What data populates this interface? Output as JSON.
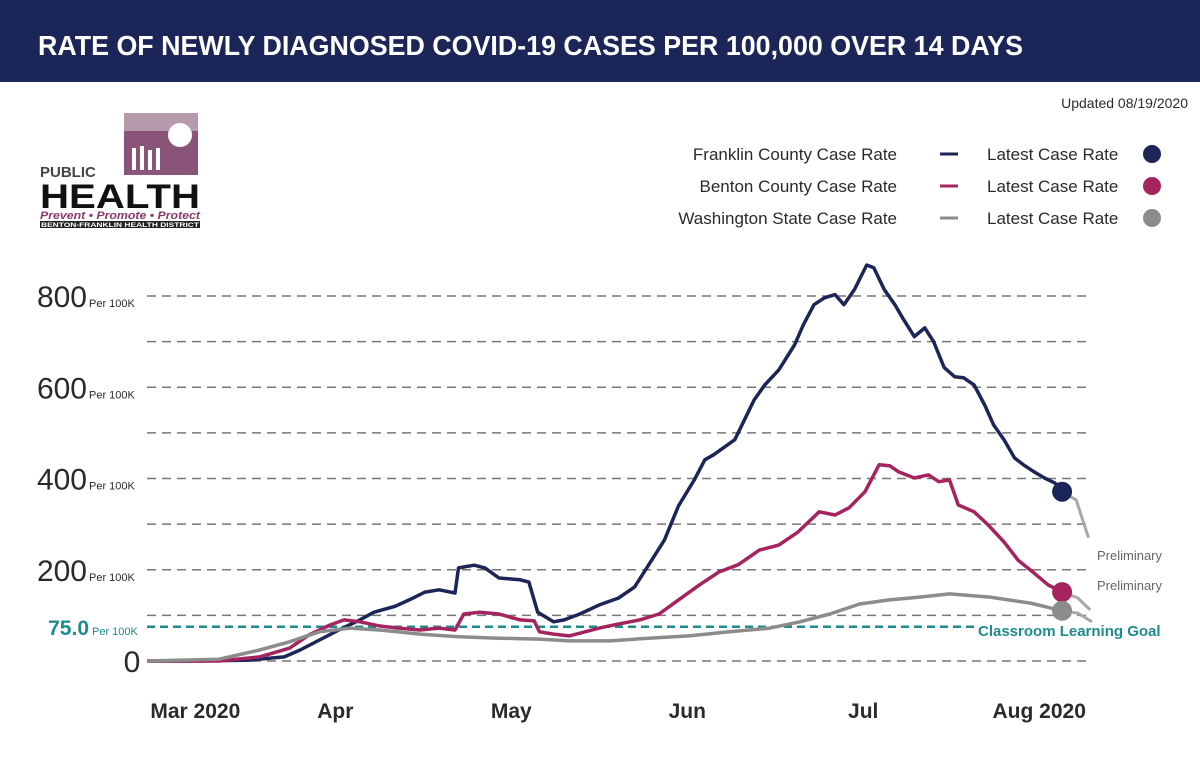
{
  "chart_data": {
    "type": "line",
    "title": "RATE OF NEWLY DIAGNOSED COVID-19 CASES PER 100,000 OVER 14 DAYS",
    "updated": "Updated 08/19/2020",
    "logo": {
      "line1": "PUBLIC",
      "line2": "HEALTH",
      "tagline": "Prevent • Promote • Protect",
      "district": "BENTON-FRANKLIN HEALTH DISTRICT"
    },
    "latest_label": "Latest Case Rate",
    "preliminary_label": "Preliminary",
    "preliminary_color": "#a8a8a8",
    "y_unit": "Per 100K",
    "xlim": [
      2.93,
      8.3
    ],
    "xticks": [
      {
        "value": 3,
        "label": "Mar 2020"
      },
      {
        "value": 4,
        "label": "Apr"
      },
      {
        "value": 5,
        "label": "May"
      },
      {
        "value": 6,
        "label": "Jun"
      },
      {
        "value": 7,
        "label": "Jul"
      },
      {
        "value": 8,
        "label": "Aug 2020"
      }
    ],
    "ylim": [
      0,
      880
    ],
    "yticks": [
      0,
      200,
      400,
      600,
      800
    ],
    "ygrid": [
      0,
      100,
      200,
      300,
      400,
      500,
      600,
      700,
      800
    ],
    "grid": true,
    "goal": {
      "value": 75,
      "value_label": "75.0",
      "name": "Classroom Learning Goal",
      "color": "#1e8c8c"
    },
    "series": [
      {
        "name": "Franklin County Case Rate",
        "color": "#1c2557",
        "x": [
          2.93,
          3.23,
          3.51,
          3.71,
          3.8,
          3.91,
          4.02,
          4.14,
          4.22,
          4.34,
          4.42,
          4.51,
          4.59,
          4.68,
          4.7,
          4.79,
          4.85,
          4.93,
          5.05,
          5.1,
          5.15,
          5.24,
          5.3,
          5.39,
          5.5,
          5.61,
          5.7,
          5.78,
          5.87,
          5.95,
          6.04,
          6.1,
          6.15,
          6.27,
          6.38,
          6.44,
          6.52,
          6.61,
          6.66,
          6.72,
          6.78,
          6.84,
          6.89,
          6.95,
          7.02,
          7.06,
          7.12,
          7.18,
          7.23,
          7.29,
          7.35,
          7.4,
          7.46,
          7.52,
          7.57,
          7.63,
          7.69,
          7.74,
          7.8,
          7.86,
          7.91,
          7.97,
          8.03,
          8.09,
          8.13
        ],
        "values": [
          0,
          0,
          2,
          9,
          24,
          46,
          68,
          90,
          107,
          120,
          134,
          151,
          156,
          149,
          204,
          210,
          204,
          182,
          178,
          173,
          107,
          86,
          90,
          103,
          123,
          138,
          162,
          210,
          265,
          340,
          397,
          441,
          452,
          485,
          572,
          605,
          638,
          693,
          737,
          781,
          796,
          803,
          781,
          814,
          868,
          862,
          814,
          781,
          748,
          711,
          730,
          700,
          643,
          623,
          621,
          605,
          561,
          518,
          485,
          445,
          430,
          415,
          401,
          390,
          371
        ],
        "preliminary": {
          "x": [
            8.13,
            8.21,
            8.28
          ],
          "values": [
            371,
            353,
            270
          ]
        }
      },
      {
        "name": "Benton County Case Rate",
        "color": "#a5235f",
        "x": [
          2.93,
          3.34,
          3.57,
          3.74,
          3.85,
          3.97,
          4.05,
          4.14,
          4.25,
          4.36,
          4.48,
          4.59,
          4.68,
          4.73,
          4.82,
          4.93,
          5.05,
          5.13,
          5.16,
          5.24,
          5.33,
          5.42,
          5.5,
          5.61,
          5.73,
          5.84,
          5.95,
          6.07,
          6.18,
          6.29,
          6.41,
          6.52,
          6.63,
          6.75,
          6.84,
          6.92,
          7.01,
          7.09,
          7.15,
          7.2,
          7.29,
          7.37,
          7.43,
          7.49,
          7.54,
          7.63,
          7.71,
          7.8,
          7.88,
          7.97,
          8.05,
          8.13
        ],
        "values": [
          0,
          0,
          9,
          28,
          57,
          79,
          90,
          86,
          77,
          72,
          68,
          72,
          68,
          103,
          107,
          103,
          90,
          88,
          64,
          59,
          55,
          64,
          72,
          81,
          90,
          103,
          134,
          167,
          195,
          211,
          243,
          254,
          283,
          327,
          320,
          336,
          371,
          430,
          428,
          415,
          401,
          408,
          393,
          397,
          342,
          327,
          298,
          261,
          221,
          193,
          167,
          151
        ],
        "preliminary": {
          "x": [
            8.13,
            8.22,
            8.29
          ],
          "values": [
            151,
            138,
            112
          ]
        }
      },
      {
        "name": "Washington State Case Rate",
        "color": "#8c8c8c",
        "x": [
          2.93,
          3.34,
          3.57,
          3.74,
          3.91,
          4.08,
          4.25,
          4.48,
          4.7,
          4.93,
          5.16,
          5.33,
          5.56,
          5.78,
          6.01,
          6.24,
          6.47,
          6.64,
          6.81,
          6.98,
          7.15,
          7.32,
          7.49,
          7.72,
          7.95,
          8.13
        ],
        "values": [
          0,
          4,
          24,
          42,
          64,
          72,
          68,
          59,
          53,
          50,
          48,
          44,
          44,
          50,
          55,
          64,
          72,
          86,
          103,
          125,
          134,
          140,
          147,
          140,
          127,
          110
        ],
        "preliminary": {
          "x": [
            8.13,
            8.22,
            8.3
          ],
          "values": [
            110,
            105,
            86
          ]
        }
      }
    ]
  }
}
